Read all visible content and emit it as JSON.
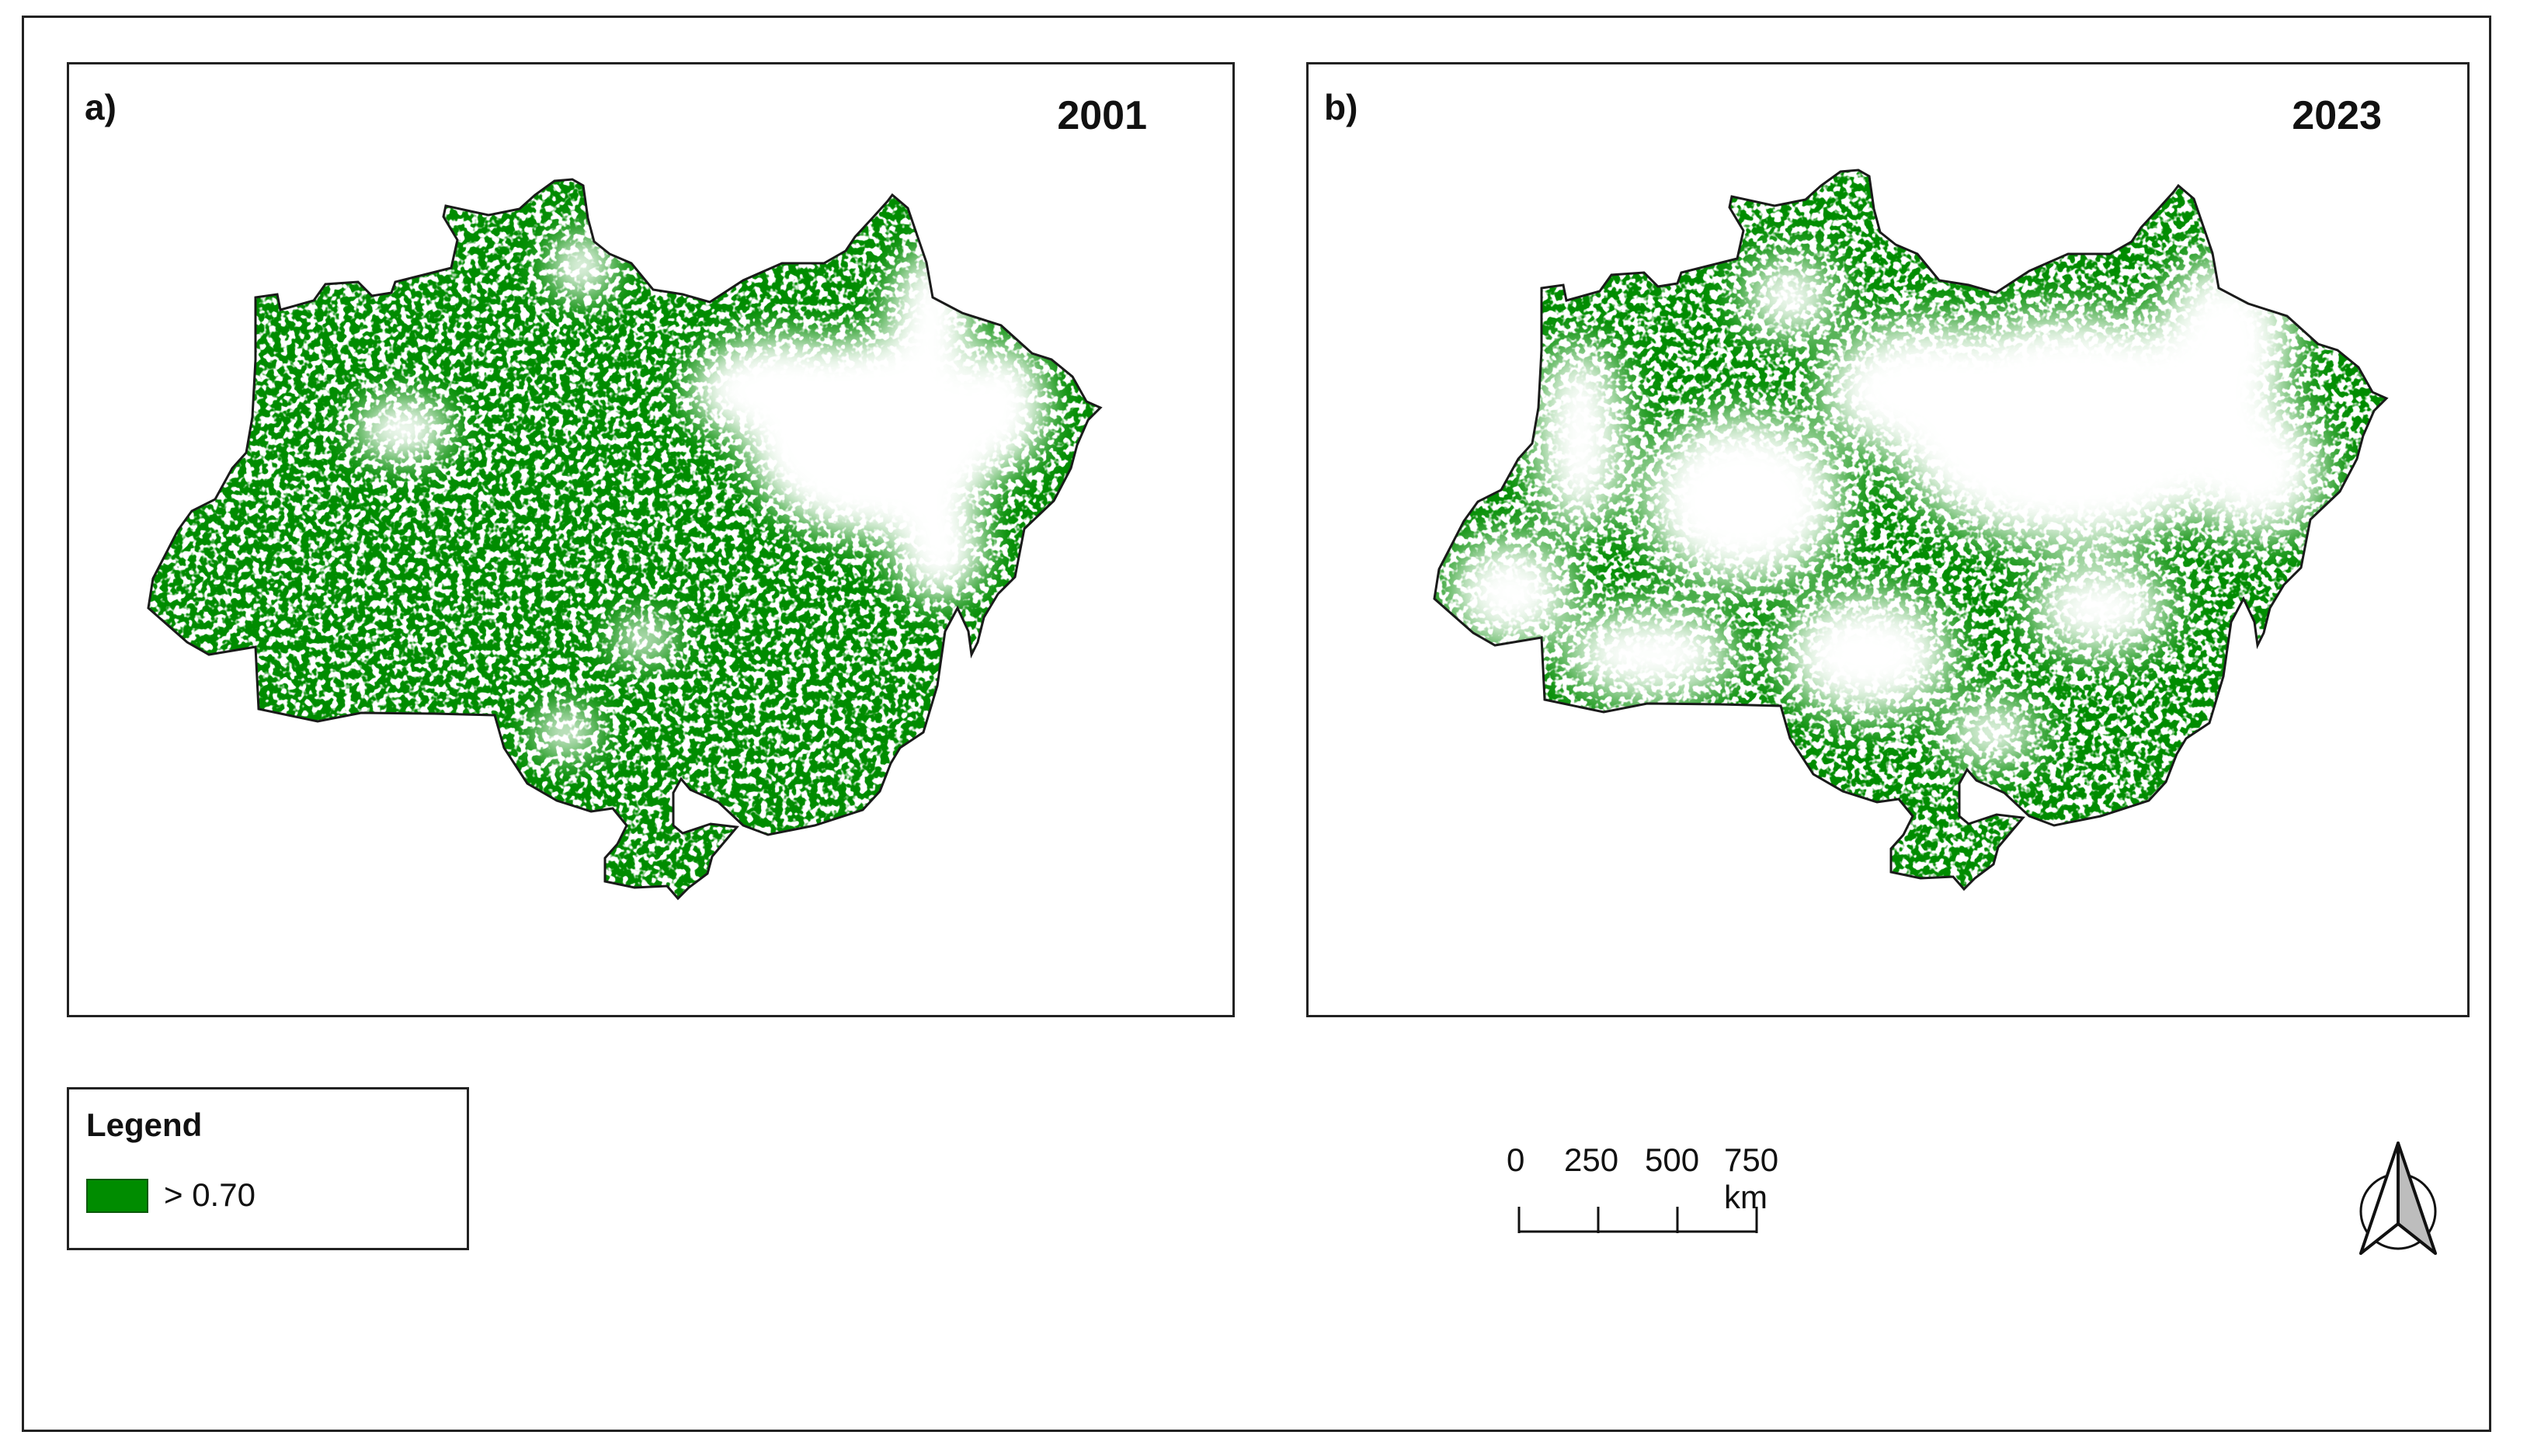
{
  "panels": [
    {
      "letter": "a)",
      "year": "2001"
    },
    {
      "letter": "b)",
      "year": "2023"
    }
  ],
  "legend": {
    "title": "Legend",
    "items": [
      {
        "label": "> 0.70",
        "color": "#008c00"
      }
    ]
  },
  "scalebar": {
    "ticks": [
      "0",
      "250",
      "500",
      "750 km"
    ]
  },
  "colors": {
    "forest": "#008c00",
    "forest_dark": "#006e00",
    "outline": "#1a1a1a"
  },
  "icons": {
    "north_arrow": "north-arrow-icon"
  }
}
